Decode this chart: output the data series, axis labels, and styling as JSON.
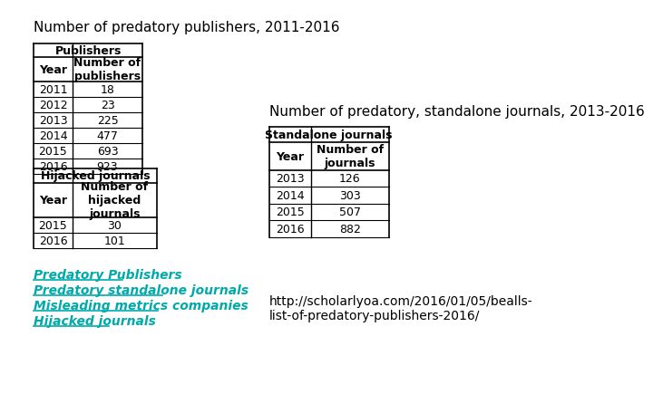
{
  "title1": "Number of predatory publishers, 2011-2016",
  "title2": "Number of predatory, standalone journals, 2013-2016",
  "publishers_header": "Publishers",
  "publishers_col1": "Year",
  "publishers_col2": "Number of\npublishers",
  "publishers_years": [
    "2011",
    "2012",
    "2013",
    "2014",
    "2015",
    "2016"
  ],
  "publishers_values": [
    "18",
    "23",
    "225",
    "477",
    "693",
    "923"
  ],
  "standalone_header": "Standalone journals",
  "standalone_col1": "Year",
  "standalone_col2": "Number of\njournals",
  "standalone_years": [
    "2013",
    "2014",
    "2015",
    "2016"
  ],
  "standalone_values": [
    "126",
    "303",
    "507",
    "882"
  ],
  "hijacked_header": "Hijacked journals",
  "hijacked_col1": "Year",
  "hijacked_col2": "Number of\nhijacked\njournals",
  "hijacked_years": [
    "2015",
    "2016"
  ],
  "hijacked_values": [
    "30",
    "101"
  ],
  "links": [
    "Predatory Publishers",
    "Predatory standalone journals",
    "Misleading metrics companies",
    "Hijacked journals"
  ],
  "link_color": "#00AAAA",
  "url": "http://scholarlyoa.com/2016/01/05/bealls-\nlist-of-predatory-publishers-2016/",
  "bg_color": "#ffffff",
  "table_font": "Courier New",
  "title_font_size": 11,
  "table_font_size": 9,
  "link_font_size": 10,
  "url_font_size": 10
}
